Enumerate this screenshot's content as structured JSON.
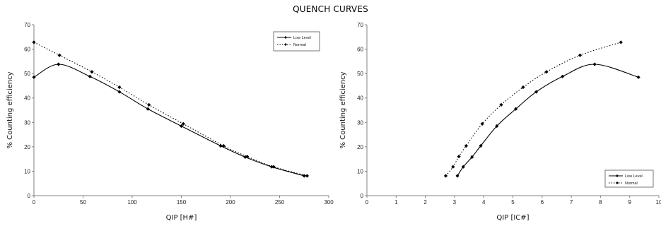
{
  "title": "QUENCH CURVES",
  "chart_data": [
    {
      "type": "line",
      "xlabel": "QIP [H#]",
      "ylabel": "% Counting efficiency",
      "xlim": [
        0,
        300
      ],
      "ylim": [
        0,
        70
      ],
      "xticks": [
        "0",
        "50",
        "100",
        "150",
        "200",
        "250",
        "300"
      ],
      "yticks": [
        "0",
        "10",
        "20",
        "30",
        "40",
        "50",
        "60",
        "70"
      ],
      "grid": false,
      "legend_position": "top-right",
      "series": [
        {
          "name": "Low Level",
          "style": "solid",
          "color": "#000000",
          "x": [
            0,
            25,
            57,
            87,
            116,
            150,
            190,
            215,
            242,
            275
          ],
          "y": [
            48.5,
            53.8,
            48.8,
            42.5,
            35.5,
            28.5,
            20.4,
            15.8,
            11.8,
            8.1
          ]
        },
        {
          "name": "Normal",
          "style": "dotted",
          "color": "#000000",
          "x": [
            0,
            26,
            59,
            87,
            117,
            152,
            193,
            217,
            244,
            278
          ],
          "y": [
            62.8,
            57.5,
            50.7,
            44.4,
            37.2,
            29.4,
            20.4,
            16.0,
            11.8,
            8.1
          ]
        }
      ]
    },
    {
      "type": "line",
      "xlabel": "QIP [IC#]",
      "ylabel": "% Counting efficiency",
      "xlim": [
        0,
        10
      ],
      "ylim": [
        0,
        70
      ],
      "xticks": [
        "0",
        "1",
        "2",
        "3",
        "4",
        "5",
        "6",
        "7",
        "8",
        "9",
        "10"
      ],
      "yticks": [
        "0",
        "10",
        "20",
        "30",
        "40",
        "50",
        "60",
        "70"
      ],
      "grid": false,
      "legend_position": "bottom-right",
      "series": [
        {
          "name": "Low Level",
          "style": "solid",
          "color": "#000000",
          "x": [
            3.1,
            3.3,
            3.6,
            3.9,
            4.45,
            5.1,
            5.8,
            6.7,
            7.8,
            9.3
          ],
          "y": [
            8.1,
            11.8,
            15.8,
            20.4,
            28.5,
            35.5,
            42.5,
            48.8,
            53.8,
            48.5
          ]
        },
        {
          "name": "Normal",
          "style": "dotted",
          "color": "#000000",
          "x": [
            2.7,
            2.95,
            3.15,
            3.4,
            3.95,
            4.6,
            5.35,
            6.15,
            7.3,
            8.7
          ],
          "y": [
            8.1,
            11.8,
            16.0,
            20.4,
            29.4,
            37.2,
            44.4,
            50.7,
            57.5,
            62.8
          ]
        }
      ]
    }
  ]
}
